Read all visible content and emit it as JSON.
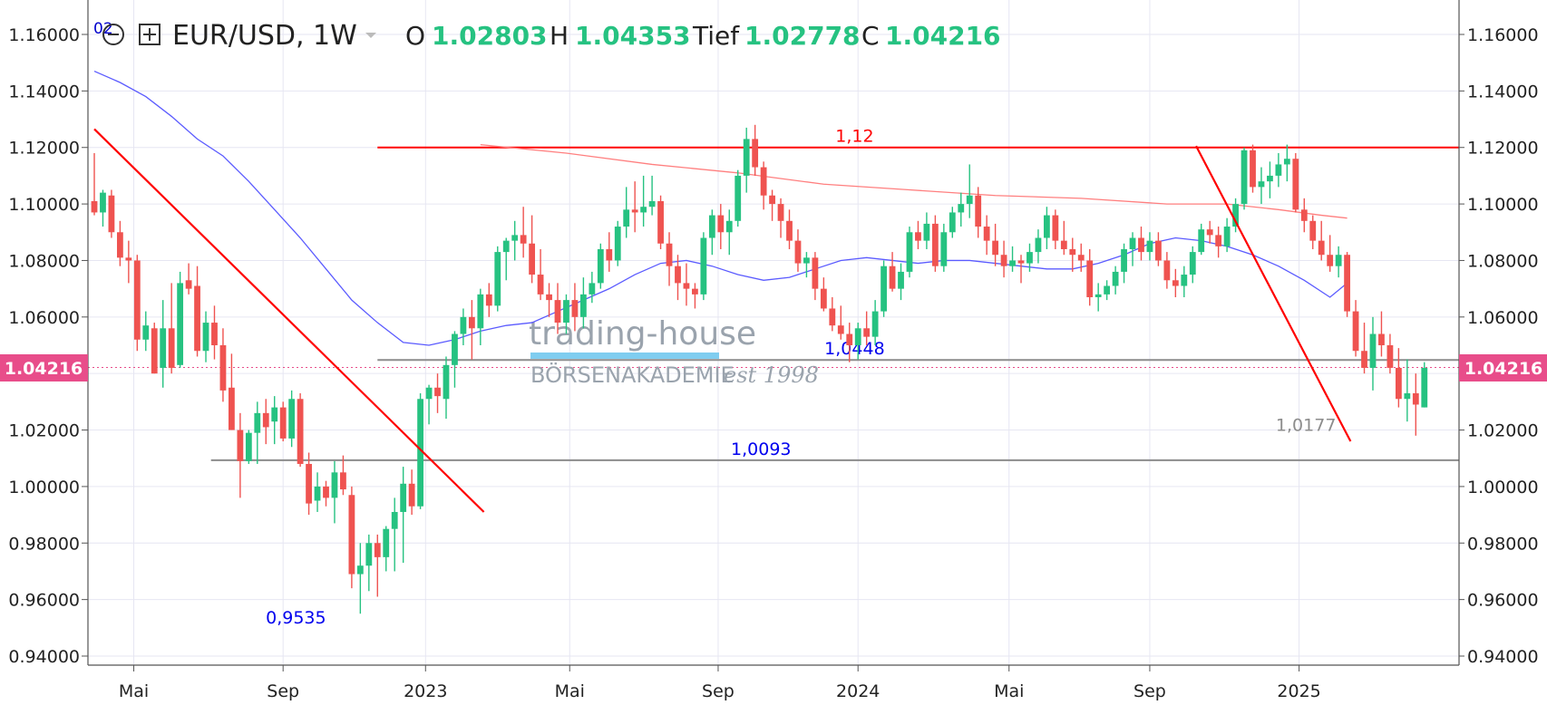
{
  "header": {
    "badge": "02",
    "symbol": "EUR/USD, 1W",
    "open_label": "O",
    "open_value": "1.02803",
    "high_label": "H",
    "high_value": "1.04353",
    "low_label": "Tief",
    "low_value": "1.02778",
    "close_label": "C",
    "close_value": "1.04216"
  },
  "watermark": {
    "line1": "trading-house",
    "line2": "BÖRSENAKADEMIE",
    "line3": "est 1998"
  },
  "price_tag": {
    "value": "1.04216",
    "color": "#e84d8a"
  },
  "colors": {
    "up": "#26c281",
    "down": "#ef5350",
    "resistance": "#ff0000",
    "support": "#8c8c8c",
    "ma_short": "#5b5bff",
    "ma_long": "#ff7f7f"
  },
  "chart_data": {
    "type": "candlestick",
    "timeframe": "1W",
    "ylim": [
      0.94,
      1.16
    ],
    "y_ticks": [
      "1.16000",
      "1.14000",
      "1.12000",
      "1.10000",
      "1.08000",
      "1.06000",
      "1.04000",
      "1.02000",
      "1.00000",
      "0.98000",
      "0.96000",
      "0.94000"
    ],
    "y_tick_values": [
      1.16,
      1.14,
      1.12,
      1.1,
      1.08,
      1.06,
      1.04,
      1.02,
      1.0,
      0.98,
      0.96,
      0.94
    ],
    "x_ticks": [
      {
        "label": "Mai",
        "t": 4.6
      },
      {
        "label": "Sep",
        "t": 22.0
      },
      {
        "label": "2023",
        "t": 38.6
      },
      {
        "label": "Mai",
        "t": 55.4
      },
      {
        "label": "Sep",
        "t": 72.7
      },
      {
        "label": "2024",
        "t": 89.0
      },
      {
        "label": "Mai",
        "t": 106.6
      },
      {
        "label": "Sep",
        "t": 123.0
      },
      {
        "label": "2025",
        "t": 140.4
      }
    ],
    "t_range": [
      -0.6,
      159
    ],
    "candles_ohlc": [
      [
        1.101,
        1.118,
        1.096,
        1.097
      ],
      [
        1.097,
        1.105,
        1.092,
        1.104
      ],
      [
        1.103,
        1.105,
        1.088,
        1.09
      ],
      [
        1.09,
        1.094,
        1.078,
        1.081
      ],
      [
        1.081,
        1.087,
        1.072,
        1.08
      ],
      [
        1.08,
        1.082,
        1.048,
        1.052
      ],
      [
        1.052,
        1.062,
        1.048,
        1.057
      ],
      [
        1.056,
        1.058,
        1.04,
        1.04
      ],
      [
        1.042,
        1.066,
        1.035,
        1.056
      ],
      [
        1.056,
        1.072,
        1.04,
        1.042
      ],
      [
        1.043,
        1.076,
        1.042,
        1.072
      ],
      [
        1.073,
        1.079,
        1.068,
        1.07
      ],
      [
        1.071,
        1.078,
        1.046,
        1.048
      ],
      [
        1.048,
        1.062,
        1.044,
        1.058
      ],
      [
        1.058,
        1.064,
        1.045,
        1.05
      ],
      [
        1.05,
        1.056,
        1.03,
        1.034
      ],
      [
        1.035,
        1.047,
        1.02,
        1.02
      ],
      [
        1.02,
        1.026,
        0.996,
        1.009
      ],
      [
        1.009,
        1.02,
        1.008,
        1.019
      ],
      [
        1.019,
        1.03,
        1.008,
        1.026
      ],
      [
        1.026,
        1.031,
        1.015,
        1.021
      ],
      [
        1.023,
        1.032,
        1.015,
        1.028
      ],
      [
        1.028,
        1.03,
        1.016,
        1.017
      ],
      [
        1.017,
        1.034,
        1.014,
        1.031
      ],
      [
        1.031,
        1.033,
        1.007,
        1.008
      ],
      [
        1.008,
        1.012,
        0.99,
        0.994
      ],
      [
        0.995,
        1.005,
        0.991,
        1.0
      ],
      [
        1.0,
        1.002,
        0.993,
        0.996
      ],
      [
        0.996,
        1.009,
        0.987,
        1.005
      ],
      [
        1.005,
        1.011,
        0.997,
        0.999
      ],
      [
        0.997,
        1.0,
        0.964,
        0.969
      ],
      [
        0.969,
        0.98,
        0.955,
        0.972
      ],
      [
        0.972,
        0.983,
        0.963,
        0.98
      ],
      [
        0.98,
        0.983,
        0.961,
        0.975
      ],
      [
        0.975,
        0.986,
        0.97,
        0.985
      ],
      [
        0.985,
        0.996,
        0.97,
        0.991
      ],
      [
        0.991,
        1.007,
        0.973,
        1.001
      ],
      [
        1.001,
        1.006,
        0.99,
        0.993
      ],
      [
        0.993,
        1.033,
        0.992,
        1.031
      ],
      [
        1.031,
        1.036,
        1.022,
        1.035
      ],
      [
        1.035,
        1.04,
        1.026,
        1.032
      ],
      [
        1.031,
        1.046,
        1.024,
        1.043
      ],
      [
        1.043,
        1.055,
        1.035,
        1.054
      ],
      [
        1.054,
        1.063,
        1.05,
        1.06
      ],
      [
        1.06,
        1.066,
        1.045,
        1.056
      ],
      [
        1.056,
        1.07,
        1.05,
        1.068
      ],
      [
        1.068,
        1.072,
        1.06,
        1.064
      ],
      [
        1.064,
        1.085,
        1.062,
        1.083
      ],
      [
        1.083,
        1.088,
        1.073,
        1.087
      ],
      [
        1.087,
        1.094,
        1.08,
        1.089
      ],
      [
        1.089,
        1.099,
        1.081,
        1.086
      ],
      [
        1.086,
        1.096,
        1.072,
        1.075
      ],
      [
        1.075,
        1.084,
        1.066,
        1.068
      ],
      [
        1.068,
        1.072,
        1.06,
        1.066
      ],
      [
        1.066,
        1.072,
        1.054,
        1.058
      ],
      [
        1.058,
        1.068,
        1.054,
        1.066
      ],
      [
        1.066,
        1.072,
        1.055,
        1.06
      ],
      [
        1.06,
        1.074,
        1.056,
        1.068
      ],
      [
        1.068,
        1.076,
        1.065,
        1.072
      ],
      [
        1.072,
        1.086,
        1.07,
        1.084
      ],
      [
        1.084,
        1.09,
        1.076,
        1.08
      ],
      [
        1.08,
        1.094,
        1.078,
        1.092
      ],
      [
        1.092,
        1.106,
        1.088,
        1.098
      ],
      [
        1.098,
        1.108,
        1.09,
        1.097
      ],
      [
        1.097,
        1.11,
        1.092,
        1.099
      ],
      [
        1.099,
        1.11,
        1.096,
        1.101
      ],
      [
        1.101,
        1.103,
        1.084,
        1.086
      ],
      [
        1.086,
        1.09,
        1.071,
        1.078
      ],
      [
        1.078,
        1.082,
        1.066,
        1.072
      ],
      [
        1.072,
        1.079,
        1.064,
        1.07
      ],
      [
        1.07,
        1.072,
        1.063,
        1.068
      ],
      [
        1.068,
        1.09,
        1.066,
        1.088
      ],
      [
        1.088,
        1.098,
        1.082,
        1.096
      ],
      [
        1.096,
        1.1,
        1.084,
        1.09
      ],
      [
        1.09,
        1.098,
        1.082,
        1.094
      ],
      [
        1.094,
        1.112,
        1.092,
        1.11
      ],
      [
        1.11,
        1.127,
        1.104,
        1.123
      ],
      [
        1.123,
        1.128,
        1.11,
        1.113
      ],
      [
        1.113,
        1.115,
        1.098,
        1.103
      ],
      [
        1.103,
        1.105,
        1.094,
        1.1
      ],
      [
        1.1,
        1.102,
        1.088,
        1.094
      ],
      [
        1.094,
        1.098,
        1.084,
        1.087
      ],
      [
        1.087,
        1.091,
        1.076,
        1.079
      ],
      [
        1.079,
        1.083,
        1.074,
        1.081
      ],
      [
        1.081,
        1.083,
        1.066,
        1.07
      ],
      [
        1.07,
        1.074,
        1.062,
        1.063
      ],
      [
        1.063,
        1.067,
        1.055,
        1.057
      ],
      [
        1.057,
        1.064,
        1.052,
        1.054
      ],
      [
        1.054,
        1.058,
        1.044,
        1.05
      ],
      [
        1.05,
        1.058,
        1.045,
        1.056
      ],
      [
        1.056,
        1.062,
        1.05,
        1.053
      ],
      [
        1.053,
        1.066,
        1.05,
        1.062
      ],
      [
        1.062,
        1.08,
        1.06,
        1.078
      ],
      [
        1.078,
        1.083,
        1.069,
        1.07
      ],
      [
        1.07,
        1.079,
        1.066,
        1.076
      ],
      [
        1.076,
        1.092,
        1.074,
        1.09
      ],
      [
        1.09,
        1.094,
        1.084,
        1.087
      ],
      [
        1.087,
        1.097,
        1.084,
        1.093
      ],
      [
        1.093,
        1.096,
        1.076,
        1.078
      ],
      [
        1.078,
        1.093,
        1.076,
        1.09
      ],
      [
        1.09,
        1.099,
        1.088,
        1.097
      ],
      [
        1.097,
        1.104,
        1.092,
        1.1
      ],
      [
        1.1,
        1.114,
        1.095,
        1.103
      ],
      [
        1.103,
        1.106,
        1.088,
        1.092
      ],
      [
        1.092,
        1.096,
        1.082,
        1.087
      ],
      [
        1.087,
        1.093,
        1.078,
        1.082
      ],
      [
        1.082,
        1.087,
        1.074,
        1.078
      ],
      [
        1.078,
        1.085,
        1.076,
        1.08
      ],
      [
        1.08,
        1.082,
        1.072,
        1.079
      ],
      [
        1.079,
        1.086,
        1.076,
        1.083
      ],
      [
        1.083,
        1.091,
        1.079,
        1.088
      ],
      [
        1.088,
        1.099,
        1.084,
        1.096
      ],
      [
        1.096,
        1.098,
        1.084,
        1.087
      ],
      [
        1.087,
        1.094,
        1.082,
        1.084
      ],
      [
        1.084,
        1.088,
        1.076,
        1.082
      ],
      [
        1.082,
        1.086,
        1.076,
        1.08
      ],
      [
        1.08,
        1.084,
        1.064,
        1.067
      ],
      [
        1.067,
        1.072,
        1.062,
        1.068
      ],
      [
        1.068,
        1.073,
        1.066,
        1.071
      ],
      [
        1.071,
        1.078,
        1.068,
        1.076
      ],
      [
        1.076,
        1.086,
        1.072,
        1.084
      ],
      [
        1.084,
        1.09,
        1.078,
        1.088
      ],
      [
        1.088,
        1.092,
        1.08,
        1.083
      ],
      [
        1.083,
        1.09,
        1.08,
        1.087
      ],
      [
        1.087,
        1.09,
        1.078,
        1.08
      ],
      [
        1.08,
        1.083,
        1.07,
        1.073
      ],
      [
        1.073,
        1.077,
        1.067,
        1.071
      ],
      [
        1.071,
        1.078,
        1.067,
        1.075
      ],
      [
        1.075,
        1.085,
        1.072,
        1.083
      ],
      [
        1.083,
        1.093,
        1.082,
        1.091
      ],
      [
        1.091,
        1.094,
        1.086,
        1.089
      ],
      [
        1.089,
        1.092,
        1.081,
        1.085
      ],
      [
        1.085,
        1.095,
        1.083,
        1.092
      ],
      [
        1.092,
        1.102,
        1.09,
        1.1
      ],
      [
        1.1,
        1.12,
        1.098,
        1.119
      ],
      [
        1.119,
        1.121,
        1.104,
        1.106
      ],
      [
        1.106,
        1.113,
        1.1,
        1.108
      ],
      [
        1.108,
        1.115,
        1.102,
        1.11
      ],
      [
        1.11,
        1.118,
        1.106,
        1.114
      ],
      [
        1.114,
        1.121,
        1.108,
        1.116
      ],
      [
        1.116,
        1.118,
        1.097,
        1.098
      ],
      [
        1.098,
        1.102,
        1.09,
        1.094
      ],
      [
        1.094,
        1.096,
        1.084,
        1.087
      ],
      [
        1.087,
        1.094,
        1.08,
        1.082
      ],
      [
        1.082,
        1.089,
        1.076,
        1.078
      ],
      [
        1.078,
        1.085,
        1.074,
        1.082
      ],
      [
        1.082,
        1.083,
        1.06,
        1.062
      ],
      [
        1.062,
        1.066,
        1.046,
        1.048
      ],
      [
        1.048,
        1.058,
        1.04,
        1.042
      ],
      [
        1.042,
        1.06,
        1.034,
        1.054
      ],
      [
        1.054,
        1.062,
        1.046,
        1.05
      ],
      [
        1.05,
        1.054,
        1.04,
        1.042
      ],
      [
        1.042,
        1.049,
        1.028,
        1.031
      ],
      [
        1.031,
        1.045,
        1.023,
        1.033
      ],
      [
        1.033,
        1.04,
        1.018,
        1.029
      ],
      [
        1.028,
        1.044,
        1.028,
        1.042
      ]
    ],
    "moving_average_short": [
      [
        0,
        1.147
      ],
      [
        3,
        1.143
      ],
      [
        6,
        1.138
      ],
      [
        9,
        1.131
      ],
      [
        12,
        1.123
      ],
      [
        15,
        1.117
      ],
      [
        18,
        1.108
      ],
      [
        21,
        1.098
      ],
      [
        24,
        1.088
      ],
      [
        27,
        1.077
      ],
      [
        30,
        1.066
      ],
      [
        33,
        1.058
      ],
      [
        36,
        1.051
      ],
      [
        39,
        1.05
      ],
      [
        42,
        1.052
      ],
      [
        45,
        1.055
      ],
      [
        48,
        1.057
      ],
      [
        51,
        1.058
      ],
      [
        54,
        1.062
      ],
      [
        57,
        1.066
      ],
      [
        60,
        1.07
      ],
      [
        63,
        1.075
      ],
      [
        66,
        1.079
      ],
      [
        69,
        1.08
      ],
      [
        72,
        1.078
      ],
      [
        75,
        1.075
      ],
      [
        78,
        1.073
      ],
      [
        81,
        1.074
      ],
      [
        84,
        1.077
      ],
      [
        87,
        1.08
      ],
      [
        90,
        1.081
      ],
      [
        93,
        1.08
      ],
      [
        96,
        1.079
      ],
      [
        99,
        1.08
      ],
      [
        102,
        1.08
      ],
      [
        105,
        1.079
      ],
      [
        108,
        1.078
      ],
      [
        111,
        1.077
      ],
      [
        114,
        1.077
      ],
      [
        117,
        1.079
      ],
      [
        120,
        1.082
      ],
      [
        123,
        1.086
      ],
      [
        126,
        1.088
      ],
      [
        129,
        1.087
      ],
      [
        132,
        1.085
      ],
      [
        135,
        1.082
      ],
      [
        138,
        1.078
      ],
      [
        141,
        1.073
      ],
      [
        144,
        1.067
      ],
      [
        146,
        1.072
      ]
    ],
    "moving_average_long": [
      [
        45,
        1.121
      ],
      [
        55,
        1.118
      ],
      [
        65,
        1.114
      ],
      [
        75,
        1.111
      ],
      [
        85,
        1.107
      ],
      [
        95,
        1.105
      ],
      [
        105,
        1.103
      ],
      [
        115,
        1.102
      ],
      [
        125,
        1.1
      ],
      [
        132,
        1.1
      ],
      [
        138,
        1.098
      ],
      [
        143,
        1.096
      ],
      [
        146,
        1.095
      ]
    ],
    "horizontal_levels": [
      {
        "label": "1,12",
        "value": 1.12,
        "t_start": 33,
        "t_end": 159,
        "color": "#ff0000"
      },
      {
        "label": "1,0448",
        "value": 1.0448,
        "t_start": 33,
        "t_end": 159,
        "color": "#8c8c8c"
      },
      {
        "label": "1,0093",
        "value": 1.0093,
        "t_start": 13.6,
        "t_end": 159,
        "color": "#8c8c8c"
      }
    ],
    "trend_lines": [
      {
        "t1": 0,
        "v1": 1.1265,
        "t2": 45.4,
        "v2": 0.991,
        "color": "#ff0000"
      },
      {
        "t1": 128.4,
        "v1": 1.1205,
        "t2": 146.4,
        "v2": 1.016,
        "color": "#ff0000"
      }
    ],
    "annotations": [
      {
        "text": "0,9535",
        "t": 23.5,
        "value": 0.9535
      },
      {
        "text": "1,0177",
        "t": 141.2,
        "value": 1.0177
      }
    ]
  }
}
